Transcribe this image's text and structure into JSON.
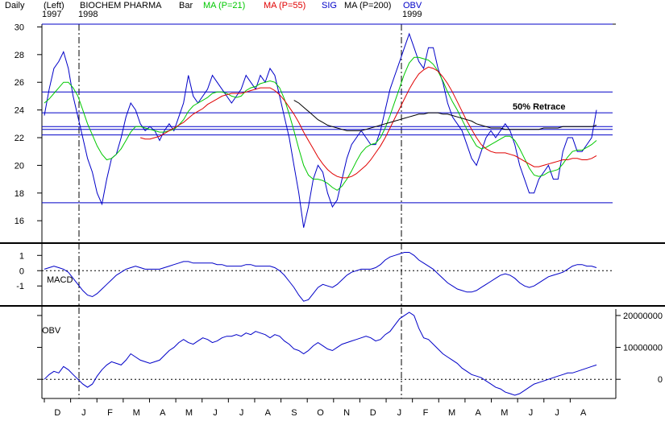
{
  "header": {
    "period": "Daily",
    "left_note": "(Left)",
    "year_start": "1997",
    "year_next": "1998",
    "year_last": "1999",
    "symbol": "BIOCHEM PHARMA",
    "bar_label": "Bar",
    "ma21_label": "MA (P=21)",
    "ma55_label": "MA (P=55)",
    "sig_label": "SIG",
    "ma200_label": "MA (P=200)",
    "obv_label": "OBV"
  },
  "colors": {
    "price": "#0000c8",
    "ma21": "#00c800",
    "ma55": "#e00000",
    "ma200": "#000000",
    "obv_header": "#0000c8",
    "sig": "#0000c8",
    "panel_line": "#0000c8",
    "hline": "#0000c8"
  },
  "chart_data": [
    {
      "type": "line",
      "panel": "price",
      "title": "BIOCHEM PHARMA",
      "ylim": [
        14.5,
        30.2
      ],
      "y_ticks": [
        16,
        18,
        20,
        22,
        24,
        26,
        28,
        30
      ],
      "x_ticks": [
        "D",
        "J",
        "F",
        "M",
        "A",
        "M",
        "J",
        "J",
        "A",
        "S",
        "O",
        "N",
        "D",
        "J",
        "F",
        "M",
        "A",
        "M",
        "J",
        "J",
        "A"
      ],
      "horizontal_levels": [
        17.3,
        22.2,
        22.6,
        22.8,
        23.8,
        25.3,
        30.2
      ],
      "annotation": "50% Retrace",
      "annotation_level": 23.8,
      "series": [
        {
          "name": "Price",
          "values": [
            23.6,
            25.5,
            27.0,
            27.5,
            28.2,
            27.0,
            25.0,
            23.5,
            22.0,
            20.5,
            19.5,
            18.0,
            17.2,
            19.0,
            20.5,
            20.8,
            22.0,
            23.5,
            24.5,
            24.0,
            23.0,
            22.5,
            22.8,
            22.5,
            21.8,
            22.5,
            23.0,
            22.5,
            23.5,
            24.5,
            26.5,
            25.0,
            24.5,
            25.0,
            25.5,
            26.5,
            26.0,
            25.5,
            25.0,
            24.5,
            25.0,
            25.5,
            26.5,
            26.0,
            25.5,
            26.5,
            26.0,
            27.0,
            26.5,
            25.0,
            23.5,
            22.0,
            20.0,
            18.0,
            15.5,
            17.0,
            19.0,
            20.0,
            19.5,
            18.0,
            17.0,
            17.5,
            19.0,
            20.5,
            21.5,
            22.0,
            22.5,
            22.0,
            21.5,
            21.5,
            22.5,
            24.0,
            25.5,
            26.5,
            27.5,
            28.5,
            29.5,
            28.5,
            27.5,
            27.0,
            28.5,
            28.5,
            27.0,
            26.0,
            24.5,
            23.5,
            23.0,
            22.5,
            21.5,
            20.5,
            20.0,
            21.0,
            22.0,
            22.5,
            22.0,
            22.5,
            23.0,
            22.5,
            21.5,
            20.0,
            19.0,
            18.0,
            18.0,
            19.0,
            19.5,
            20.0,
            19.0,
            19.0,
            21.0,
            22.0,
            22.0,
            21.0,
            21.0,
            21.5,
            22.0,
            24.0
          ]
        },
        {
          "name": "MA (P=21)",
          "values": [
            24.5,
            24.8,
            25.2,
            25.6,
            26.0,
            26.0,
            25.6,
            25.0,
            24.0,
            23.0,
            22.2,
            21.4,
            20.8,
            20.4,
            20.5,
            20.8,
            21.2,
            21.8,
            22.4,
            22.8,
            22.8,
            22.7,
            22.6,
            22.5,
            22.4,
            22.4,
            22.5,
            22.6,
            22.9,
            23.3,
            23.9,
            24.3,
            24.5,
            24.7,
            24.9,
            25.2,
            25.3,
            25.3,
            25.2,
            25.0,
            24.9,
            25.0,
            25.4,
            25.6,
            25.7,
            25.9,
            26.0,
            26.1,
            26.0,
            25.6,
            24.8,
            23.7,
            22.5,
            21.2,
            20.0,
            19.3,
            19.0,
            19.0,
            18.9,
            18.7,
            18.4,
            18.2,
            18.5,
            19.0,
            19.6,
            20.3,
            20.9,
            21.3,
            21.5,
            21.6,
            22.0,
            22.7,
            23.6,
            24.6,
            25.6,
            26.6,
            27.4,
            27.8,
            27.8,
            27.7,
            27.6,
            27.3,
            26.8,
            26.1,
            25.3,
            24.6,
            24.0,
            23.3,
            22.6,
            22.0,
            21.4,
            21.2,
            21.3,
            21.5,
            21.7,
            21.9,
            22.1,
            22.1,
            21.8,
            21.2,
            20.5,
            19.8,
            19.3,
            19.2,
            19.3,
            19.5,
            19.6,
            19.7,
            20.1,
            20.6,
            21.0,
            21.1,
            21.1,
            21.3,
            21.5,
            21.8
          ]
        },
        {
          "name": "MA (P=55)",
          "values": [
            null,
            null,
            null,
            null,
            null,
            null,
            null,
            null,
            null,
            null,
            null,
            null,
            null,
            null,
            null,
            null,
            null,
            null,
            null,
            null,
            22.0,
            21.9,
            21.9,
            22.0,
            22.1,
            22.3,
            22.5,
            22.7,
            22.9,
            23.1,
            23.4,
            23.7,
            23.9,
            24.1,
            24.4,
            24.6,
            24.8,
            25.0,
            25.1,
            25.2,
            25.2,
            25.2,
            25.3,
            25.4,
            25.5,
            25.6,
            25.6,
            25.6,
            25.4,
            25.1,
            24.7,
            24.2,
            23.7,
            23.1,
            22.4,
            21.8,
            21.2,
            20.6,
            20.1,
            19.7,
            19.4,
            19.2,
            19.1,
            19.1,
            19.2,
            19.4,
            19.7,
            20.0,
            20.4,
            20.9,
            21.4,
            22.0,
            22.7,
            23.4,
            24.1,
            24.8,
            25.5,
            26.1,
            26.6,
            26.9,
            27.1,
            27.0,
            26.8,
            26.4,
            25.9,
            25.3,
            24.6,
            23.9,
            23.2,
            22.6,
            22.0,
            21.5,
            21.2,
            21.0,
            20.9,
            20.9,
            20.9,
            20.8,
            20.7,
            20.5,
            20.3,
            20.1,
            19.9,
            19.9,
            20.0,
            20.1,
            20.2,
            20.3,
            20.4,
            20.4,
            20.5,
            20.5,
            20.4,
            20.4,
            20.5,
            20.7
          ]
        },
        {
          "name": "MA (P=200)",
          "values": [
            null,
            null,
            null,
            null,
            null,
            null,
            null,
            null,
            null,
            null,
            null,
            null,
            null,
            null,
            null,
            null,
            null,
            null,
            null,
            null,
            null,
            null,
            null,
            null,
            null,
            null,
            null,
            null,
            null,
            null,
            null,
            null,
            null,
            null,
            null,
            null,
            null,
            null,
            null,
            null,
            null,
            null,
            null,
            null,
            null,
            null,
            null,
            null,
            null,
            null,
            null,
            null,
            24.7,
            24.5,
            24.2,
            23.9,
            23.6,
            23.3,
            23.1,
            22.9,
            22.8,
            22.7,
            22.6,
            22.5,
            22.5,
            22.5,
            22.5,
            22.6,
            22.7,
            22.8,
            22.9,
            23.0,
            23.1,
            23.2,
            23.3,
            23.4,
            23.5,
            23.6,
            23.7,
            23.7,
            23.8,
            23.8,
            23.8,
            23.7,
            23.7,
            23.6,
            23.5,
            23.4,
            23.3,
            23.2,
            23.0,
            22.9,
            22.8,
            22.7,
            22.7,
            22.7,
            22.6,
            22.6,
            22.6,
            22.6,
            22.6,
            22.6,
            22.6,
            22.6,
            22.7,
            22.7,
            22.7,
            22.7,
            22.8,
            22.8,
            22.8,
            22.8,
            22.8,
            22.8,
            22.8,
            22.9
          ]
        }
      ]
    },
    {
      "type": "line",
      "panel": "macd",
      "title": "MACD",
      "ylim": [
        -2.2,
        1.7
      ],
      "y_ticks": [
        1,
        0,
        -1
      ],
      "reference_level": 0,
      "series": [
        {
          "name": "MACD",
          "values": [
            0.1,
            0.2,
            0.3,
            0.2,
            0.1,
            -0.1,
            -0.5,
            -0.9,
            -1.3,
            -1.6,
            -1.7,
            -1.5,
            -1.2,
            -0.9,
            -0.6,
            -0.3,
            -0.1,
            0.1,
            0.2,
            0.3,
            0.2,
            0.1,
            0.1,
            0.1,
            0.1,
            0.2,
            0.3,
            0.4,
            0.5,
            0.6,
            0.6,
            0.5,
            0.5,
            0.5,
            0.5,
            0.5,
            0.4,
            0.4,
            0.3,
            0.3,
            0.3,
            0.3,
            0.4,
            0.4,
            0.3,
            0.3,
            0.3,
            0.3,
            0.2,
            0.0,
            -0.3,
            -0.7,
            -1.1,
            -1.6,
            -2.0,
            -1.9,
            -1.5,
            -1.1,
            -0.9,
            -1.0,
            -1.1,
            -0.9,
            -0.6,
            -0.3,
            -0.1,
            0.0,
            0.1,
            0.1,
            0.1,
            0.2,
            0.4,
            0.7,
            0.9,
            1.0,
            1.1,
            1.2,
            1.2,
            1.0,
            0.7,
            0.5,
            0.3,
            0.1,
            -0.2,
            -0.5,
            -0.8,
            -1.0,
            -1.2,
            -1.3,
            -1.4,
            -1.4,
            -1.3,
            -1.1,
            -0.9,
            -0.7,
            -0.5,
            -0.3,
            -0.2,
            -0.3,
            -0.5,
            -0.8,
            -1.0,
            -1.1,
            -1.0,
            -0.8,
            -0.6,
            -0.4,
            -0.3,
            -0.2,
            -0.1,
            0.1,
            0.3,
            0.4,
            0.4,
            0.3,
            0.3,
            0.2
          ]
        }
      ]
    },
    {
      "type": "line",
      "panel": "obv",
      "title": "OBV",
      "ylim": [
        -5500000,
        22000000
      ],
      "y_ticks": [
        20000000,
        10000000,
        0
      ],
      "reference_level": 0,
      "series": [
        {
          "name": "OBV",
          "values": [
            0,
            1500000,
            2500000,
            2000000,
            4000000,
            3000000,
            1500000,
            0,
            -1500000,
            -2500000,
            -1500000,
            1000000,
            3000000,
            4500000,
            5500000,
            5000000,
            4500000,
            6000000,
            8000000,
            7000000,
            6000000,
            5500000,
            5000000,
            5500000,
            6000000,
            7500000,
            9000000,
            10000000,
            11500000,
            12500000,
            11500000,
            11000000,
            12000000,
            13000000,
            12500000,
            11500000,
            12000000,
            13000000,
            13500000,
            13500000,
            14000000,
            13500000,
            14500000,
            14000000,
            15000000,
            14500000,
            14000000,
            13000000,
            14000000,
            13500000,
            12000000,
            11000000,
            9500000,
            9000000,
            8000000,
            9000000,
            10500000,
            11500000,
            10500000,
            9500000,
            9000000,
            10000000,
            11000000,
            11500000,
            12000000,
            12500000,
            13000000,
            13500000,
            13000000,
            12000000,
            12500000,
            14000000,
            15000000,
            17000000,
            19000000,
            20000000,
            21000000,
            20000000,
            16000000,
            13000000,
            12500000,
            11000000,
            9500000,
            8000000,
            7000000,
            6000000,
            5000000,
            3500000,
            2500000,
            1500000,
            1000000,
            500000,
            -500000,
            -1500000,
            -2500000,
            -3000000,
            -4000000,
            -4500000,
            -5000000,
            -4500000,
            -3500000,
            -2500000,
            -1500000,
            -1000000,
            -500000,
            0,
            500000,
            1000000,
            1500000,
            2000000,
            2000000,
            2500000,
            3000000,
            3500000,
            4000000,
            4500000
          ]
        }
      ]
    }
  ]
}
